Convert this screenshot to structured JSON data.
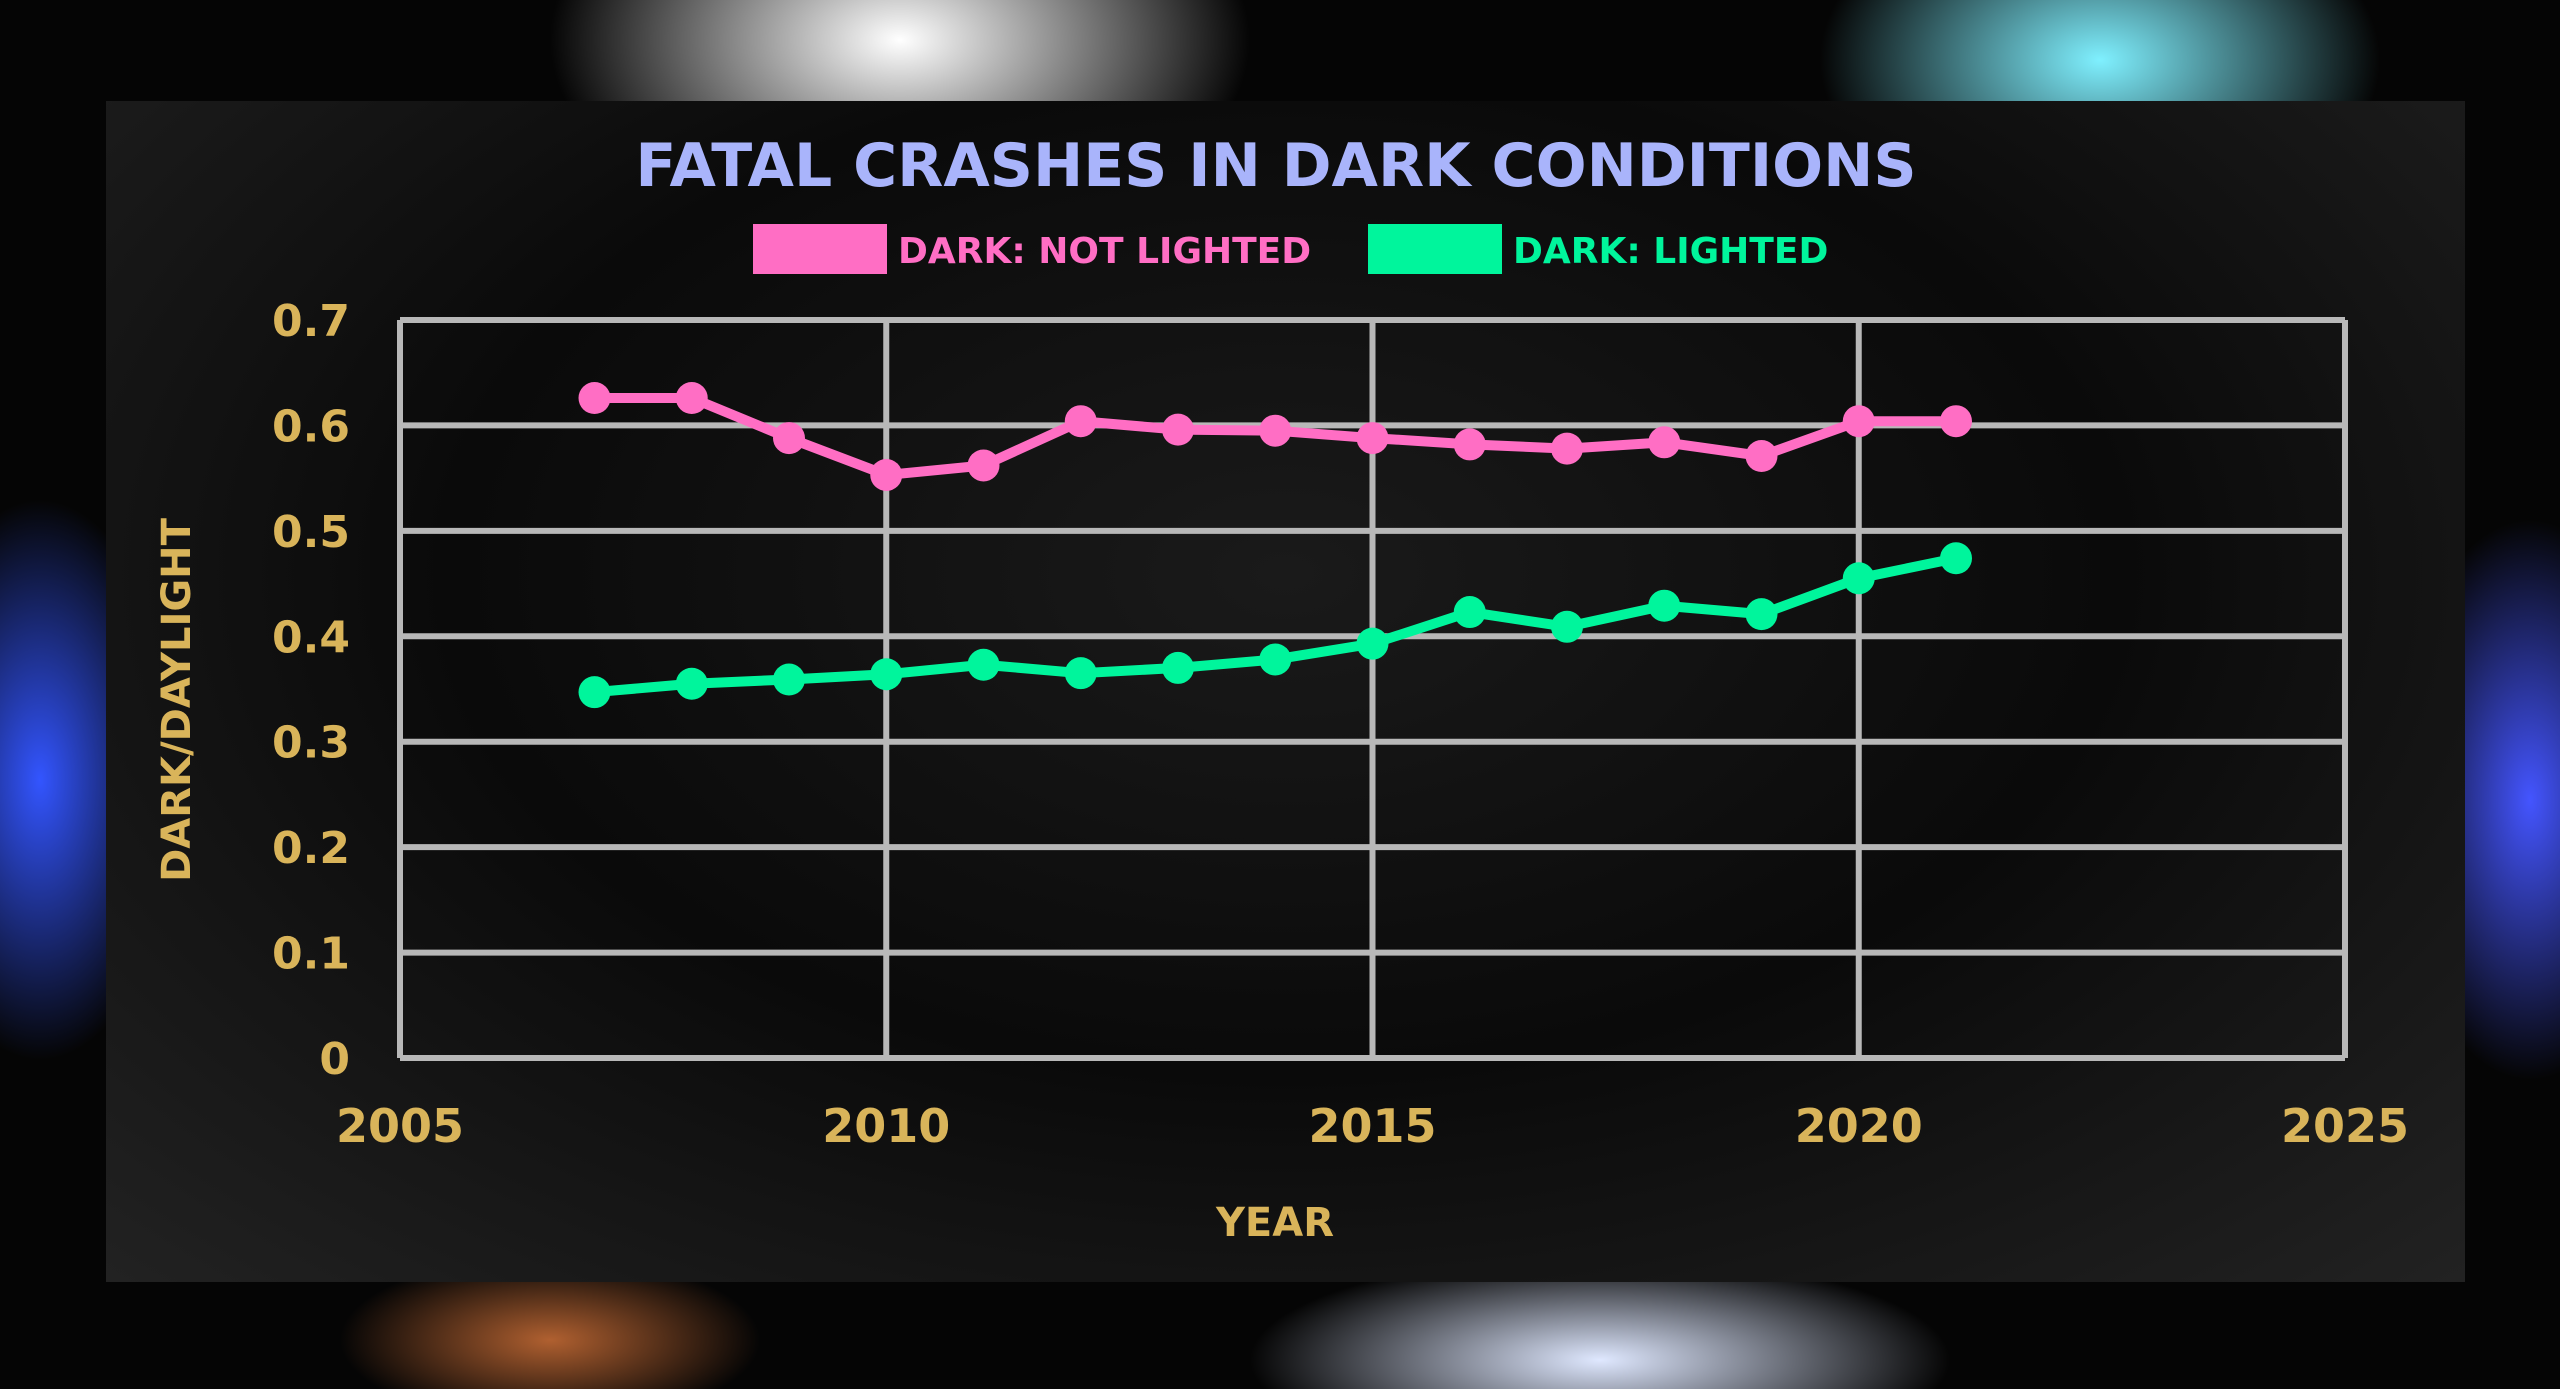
{
  "chart_data": {
    "type": "line",
    "title": "FATAL CRASHES IN DARK CONDITIONS",
    "xlabel": "YEAR",
    "ylabel": "DARK/DAYLIGHT",
    "xlim": [
      2005,
      2025
    ],
    "ylim": [
      0,
      0.7
    ],
    "xticks": [
      "2005",
      "2010",
      "2015",
      "2020",
      "2025"
    ],
    "yticks": [
      "0",
      "0.1",
      "0.2",
      "0.3",
      "0.4",
      "0.5",
      "0.6",
      "0.7"
    ],
    "grid": true,
    "legend_position": "top-center",
    "x": [
      2007,
      2008,
      2009,
      2010,
      2011,
      2012,
      2013,
      2014,
      2015,
      2016,
      2017,
      2018,
      2019,
      2020,
      2021
    ],
    "series": [
      {
        "name": "DARK: NOT LIGHTED",
        "color": "#ff6ec4",
        "values": [
          0.626,
          0.626,
          0.588,
          0.553,
          0.562,
          0.604,
          0.596,
          0.595,
          0.588,
          0.582,
          0.578,
          0.584,
          0.571,
          0.604,
          0.604
        ]
      },
      {
        "name": "DARK: LIGHTED",
        "color": "#00f59c",
        "values": [
          0.347,
          0.355,
          0.359,
          0.364,
          0.373,
          0.365,
          0.37,
          0.378,
          0.393,
          0.423,
          0.409,
          0.429,
          0.421,
          0.455,
          0.474
        ]
      }
    ],
    "colors": {
      "title": "#a9b4fb",
      "axis_text": "#d9b45a",
      "grid": "#b8b8b8"
    }
  }
}
